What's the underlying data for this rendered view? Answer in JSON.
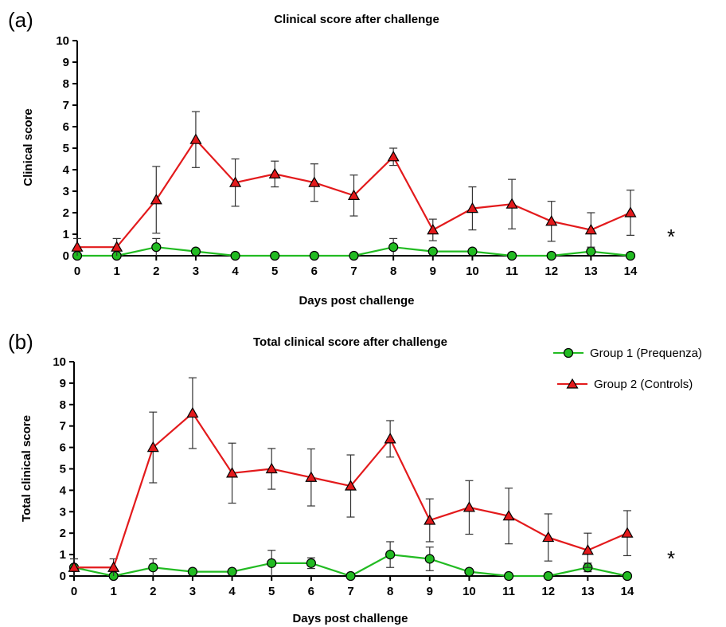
{
  "chart_data": [
    {
      "type": "line",
      "panel_label": "(a)",
      "title": "Clinical score after challenge",
      "xlabel": "Days post challenge",
      "ylabel": "Clinical score",
      "x": [
        0,
        1,
        2,
        3,
        4,
        5,
        6,
        7,
        8,
        9,
        10,
        11,
        12,
        13,
        14
      ],
      "ylim": [
        0,
        10
      ],
      "yticks": [
        0,
        1,
        2,
        3,
        4,
        5,
        6,
        7,
        8,
        9,
        10
      ],
      "grid": false,
      "annotation": "*",
      "series": [
        {
          "name": "Group 1 (Prequenza)",
          "color": "#22bb22",
          "marker": "circle",
          "values": [
            0,
            0,
            0.4,
            0.2,
            0,
            0,
            0,
            0,
            0.4,
            0.2,
            0.2,
            0,
            0,
            0.2,
            0
          ],
          "errors": [
            0,
            0,
            0.4,
            0,
            0,
            0,
            0,
            0,
            0.4,
            0,
            0,
            0,
            0,
            0,
            0
          ]
        },
        {
          "name": "Group 2 (Controls)",
          "color": "#e31a1c",
          "marker": "triangle",
          "values": [
            0.4,
            0.4,
            2.6,
            5.4,
            3.4,
            3.8,
            3.4,
            2.8,
            4.6,
            1.2,
            2.2,
            2.4,
            1.6,
            1.2,
            2.0
          ],
          "errors": [
            0.4,
            0.4,
            1.55,
            1.3,
            1.1,
            0.6,
            0.87,
            0.95,
            0.4,
            0.5,
            1.0,
            1.15,
            0.93,
            0.8,
            1.05
          ]
        }
      ]
    },
    {
      "type": "line",
      "panel_label": "(b)",
      "title": "Total clinical score after challenge",
      "xlabel": "Days post challenge",
      "ylabel": "Total clinical score",
      "x": [
        0,
        1,
        2,
        3,
        4,
        5,
        6,
        7,
        8,
        9,
        10,
        11,
        12,
        13,
        14
      ],
      "ylim": [
        0,
        10
      ],
      "yticks": [
        0,
        1,
        2,
        3,
        4,
        5,
        6,
        7,
        8,
        9,
        10
      ],
      "grid": false,
      "legend_position": "top-right",
      "annotation": "*",
      "series": [
        {
          "name": "Group 1 (Prequenza)",
          "color": "#22bb22",
          "marker": "circle",
          "values": [
            0.4,
            0,
            0.4,
            0.2,
            0.2,
            0.6,
            0.6,
            0,
            1.0,
            0.8,
            0.2,
            0,
            0,
            0.4,
            0
          ],
          "errors": [
            0.4,
            0,
            0.4,
            0,
            0,
            0.6,
            0.25,
            0,
            0.6,
            0.55,
            0,
            0,
            0,
            0.2,
            0
          ]
        },
        {
          "name": "Group 2 (Controls)",
          "color": "#e31a1c",
          "marker": "triangle",
          "values": [
            0.4,
            0.4,
            6.0,
            7.6,
            4.8,
            5.0,
            4.6,
            4.2,
            6.4,
            2.6,
            3.2,
            2.8,
            1.8,
            1.2,
            2.0
          ],
          "errors": [
            0.4,
            0.4,
            1.65,
            1.65,
            1.4,
            0.95,
            1.33,
            1.45,
            0.85,
            1.0,
            1.25,
            1.3,
            1.1,
            0.8,
            1.05
          ]
        }
      ]
    }
  ]
}
